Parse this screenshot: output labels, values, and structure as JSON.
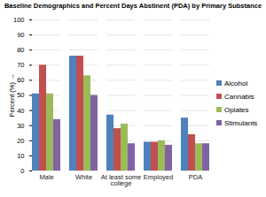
{
  "chart_data": {
    "type": "bar",
    "title": "Baseline Demographics and Percent Days Abstinent (PDA) by Primary Substance",
    "ylabel": "Percent (%)",
    "categories": [
      "Male",
      "White",
      "At least some college",
      "Employed",
      "PDA"
    ],
    "series": [
      {
        "name": "Alcohol",
        "color": "#4f81bd",
        "values": [
          51,
          76,
          37,
          19,
          35
        ]
      },
      {
        "name": "Cannabis",
        "color": "#c0504d",
        "values": [
          70,
          76,
          28,
          19,
          24
        ]
      },
      {
        "name": "Opiates",
        "color": "#9bbb59",
        "values": [
          51,
          63,
          31,
          20,
          18
        ]
      },
      {
        "name": "Stimulants",
        "color": "#8064a2",
        "values": [
          34,
          50,
          18,
          17,
          18
        ]
      }
    ],
    "ylim": [
      0,
      100
    ],
    "yticks": [
      0,
      10,
      20,
      30,
      40,
      50,
      60,
      70,
      80,
      90,
      100
    ],
    "grid": true,
    "legend": "right"
  }
}
